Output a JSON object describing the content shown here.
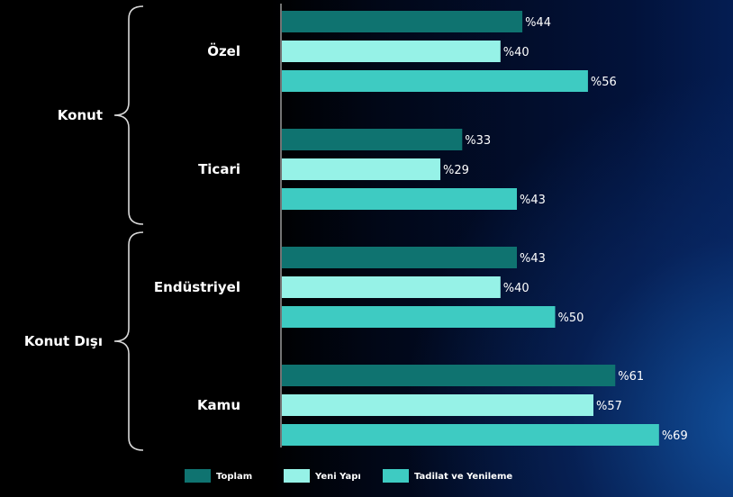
{
  "chart_data": {
    "type": "bar",
    "orientation": "horizontal",
    "groups": [
      {
        "name": "Konut",
        "categories": [
          "Özel",
          "Ticari"
        ]
      },
      {
        "name": "Konut Dışı",
        "categories": [
          "Endüstriyel",
          "Kamu"
        ]
      }
    ],
    "categories": [
      "Özel",
      "Ticari",
      "Endüstriyel",
      "Kamu"
    ],
    "series": [
      {
        "name": "Toplam",
        "color": "#0f7370",
        "values": [
          44,
          33,
          43,
          61
        ],
        "labels": [
          "%44",
          "%33",
          "%43",
          "%61"
        ]
      },
      {
        "name": "Yeni Yapı",
        "color": "#96f2e7",
        "values": [
          40,
          29,
          40,
          57
        ],
        "labels": [
          "%40",
          "%29",
          "%40",
          "%57"
        ]
      },
      {
        "name": "Tadilat ve Yenileme",
        "color": "#3ecbc2",
        "values": [
          56,
          43,
          50,
          69
        ],
        "labels": [
          "%56",
          "%43",
          "%50",
          "%69"
        ]
      }
    ],
    "xlim": [
      0,
      100
    ],
    "legend_position": "bottom",
    "grid": false
  }
}
